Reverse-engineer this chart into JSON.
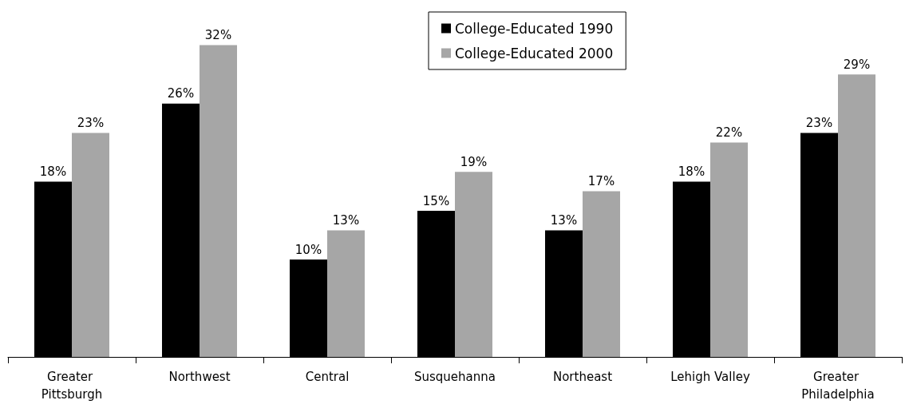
{
  "chart_data": {
    "type": "bar",
    "categories": [
      "Greater Pittsburgh",
      "Northwest",
      "Central",
      "Susquehanna",
      "Northeast",
      "Lehigh Valley",
      "Greater Philadelphia"
    ],
    "series": [
      {
        "name": "College-Educated 1990",
        "color": "#000000",
        "values": [
          18,
          26,
          10,
          15,
          13,
          18,
          23
        ],
        "value_labels": [
          "18%",
          "26%",
          "10%",
          "15%",
          "13%",
          "18%",
          "23%"
        ]
      },
      {
        "name": "College-Educated 2000",
        "color": "#a6a6a6",
        "values": [
          23,
          32,
          13,
          19,
          17,
          22,
          29
        ],
        "value_labels": [
          "23%",
          "32%",
          "13%",
          "19%",
          "17%",
          "22%",
          "29%"
        ]
      }
    ],
    "legend": "top",
    "grid": false
  }
}
